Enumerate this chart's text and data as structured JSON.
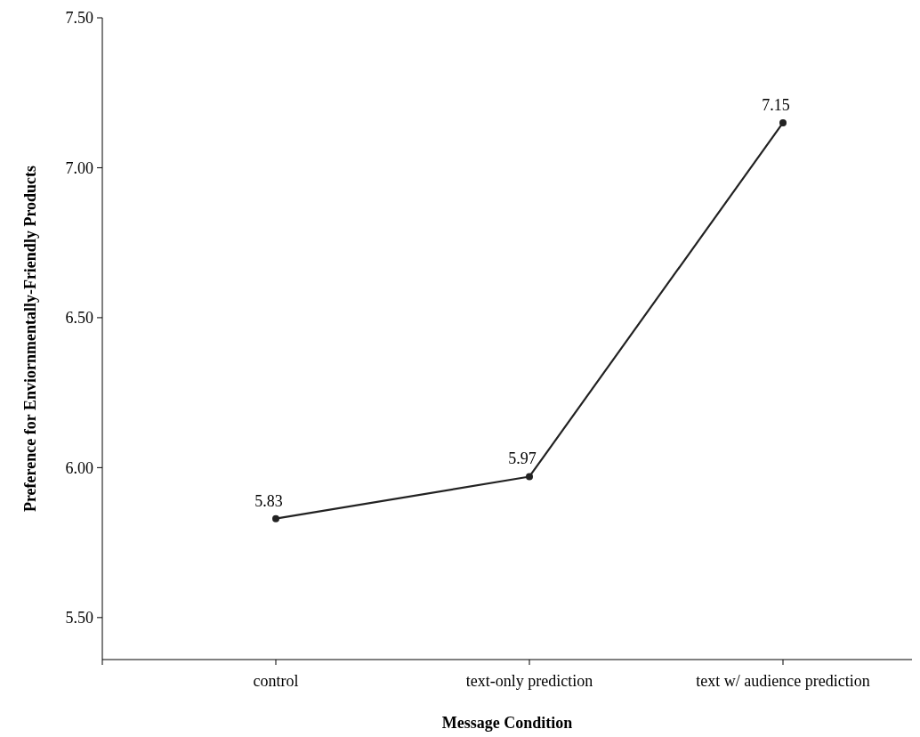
{
  "chart_data": {
    "type": "line",
    "xlabel": "Message Condition",
    "ylabel": "Preference for Enviornmentally-Friendly Products",
    "categories": [
      "control",
      "text-only prediction",
      "text w/ audience prediction"
    ],
    "series": [
      {
        "color": "#222222",
        "values": [
          5.83,
          5.97,
          7.15
        ]
      }
    ],
    "ylim": [
      5.36,
      7.5
    ],
    "yticks": [
      {
        "value": 5.5,
        "label": "5.50"
      },
      {
        "value": 6,
        "label": "6.00"
      },
      {
        "value": 6.5,
        "label": "6.50"
      },
      {
        "value": 7,
        "label": "7.00"
      },
      {
        "value": 7.5,
        "label": "7.50"
      }
    ],
    "data_labels": true,
    "marker": "circle",
    "line_style": "solid"
  }
}
